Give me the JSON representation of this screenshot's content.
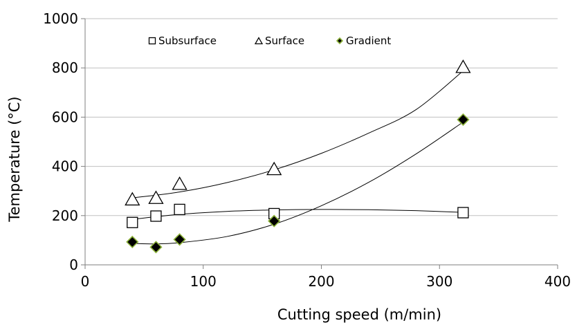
{
  "chart_data": {
    "type": "scatter",
    "xlabel": "Cutting speed (m/min)",
    "ylabel": "Temperature (°C)",
    "xlim": [
      0,
      400
    ],
    "ylim": [
      0,
      1000
    ],
    "x_ticks": [
      0,
      100,
      200,
      300,
      400
    ],
    "y_ticks": [
      0,
      200,
      400,
      600,
      800,
      1000
    ],
    "grid": "horizontal",
    "legend": "top-left",
    "series": [
      {
        "name": "Subsurface",
        "marker": "square",
        "points": [
          [
            40,
            172
          ],
          [
            60,
            198
          ],
          [
            80,
            225
          ],
          [
            160,
            208
          ],
          [
            320,
            212
          ]
        ],
        "trend": [
          [
            40,
            185
          ],
          [
            80,
            205
          ],
          [
            120,
            217
          ],
          [
            160,
            223
          ],
          [
            200,
            225
          ],
          [
            240,
            224
          ],
          [
            280,
            220
          ],
          [
            320,
            213
          ]
        ]
      },
      {
        "name": "Surface",
        "marker": "triangle",
        "points": [
          [
            40,
            262
          ],
          [
            60,
            268
          ],
          [
            80,
            325
          ],
          [
            160,
            385
          ],
          [
            320,
            800
          ]
        ],
        "trend": [
          [
            40,
            272
          ],
          [
            80,
            296
          ],
          [
            120,
            334
          ],
          [
            160,
            386
          ],
          [
            200,
            453
          ],
          [
            240,
            535
          ],
          [
            280,
            630
          ],
          [
            320,
            788
          ]
        ]
      },
      {
        "name": "Gradient",
        "marker": "diamond",
        "points": [
          [
            40,
            93
          ],
          [
            60,
            72
          ],
          [
            80,
            103
          ],
          [
            160,
            178
          ],
          [
            320,
            590
          ]
        ],
        "trend": [
          [
            40,
            87
          ],
          [
            60,
            85
          ],
          [
            80,
            90
          ],
          [
            120,
            115
          ],
          [
            160,
            165
          ],
          [
            200,
            240
          ],
          [
            240,
            335
          ],
          [
            280,
            450
          ],
          [
            320,
            580
          ]
        ]
      }
    ]
  }
}
